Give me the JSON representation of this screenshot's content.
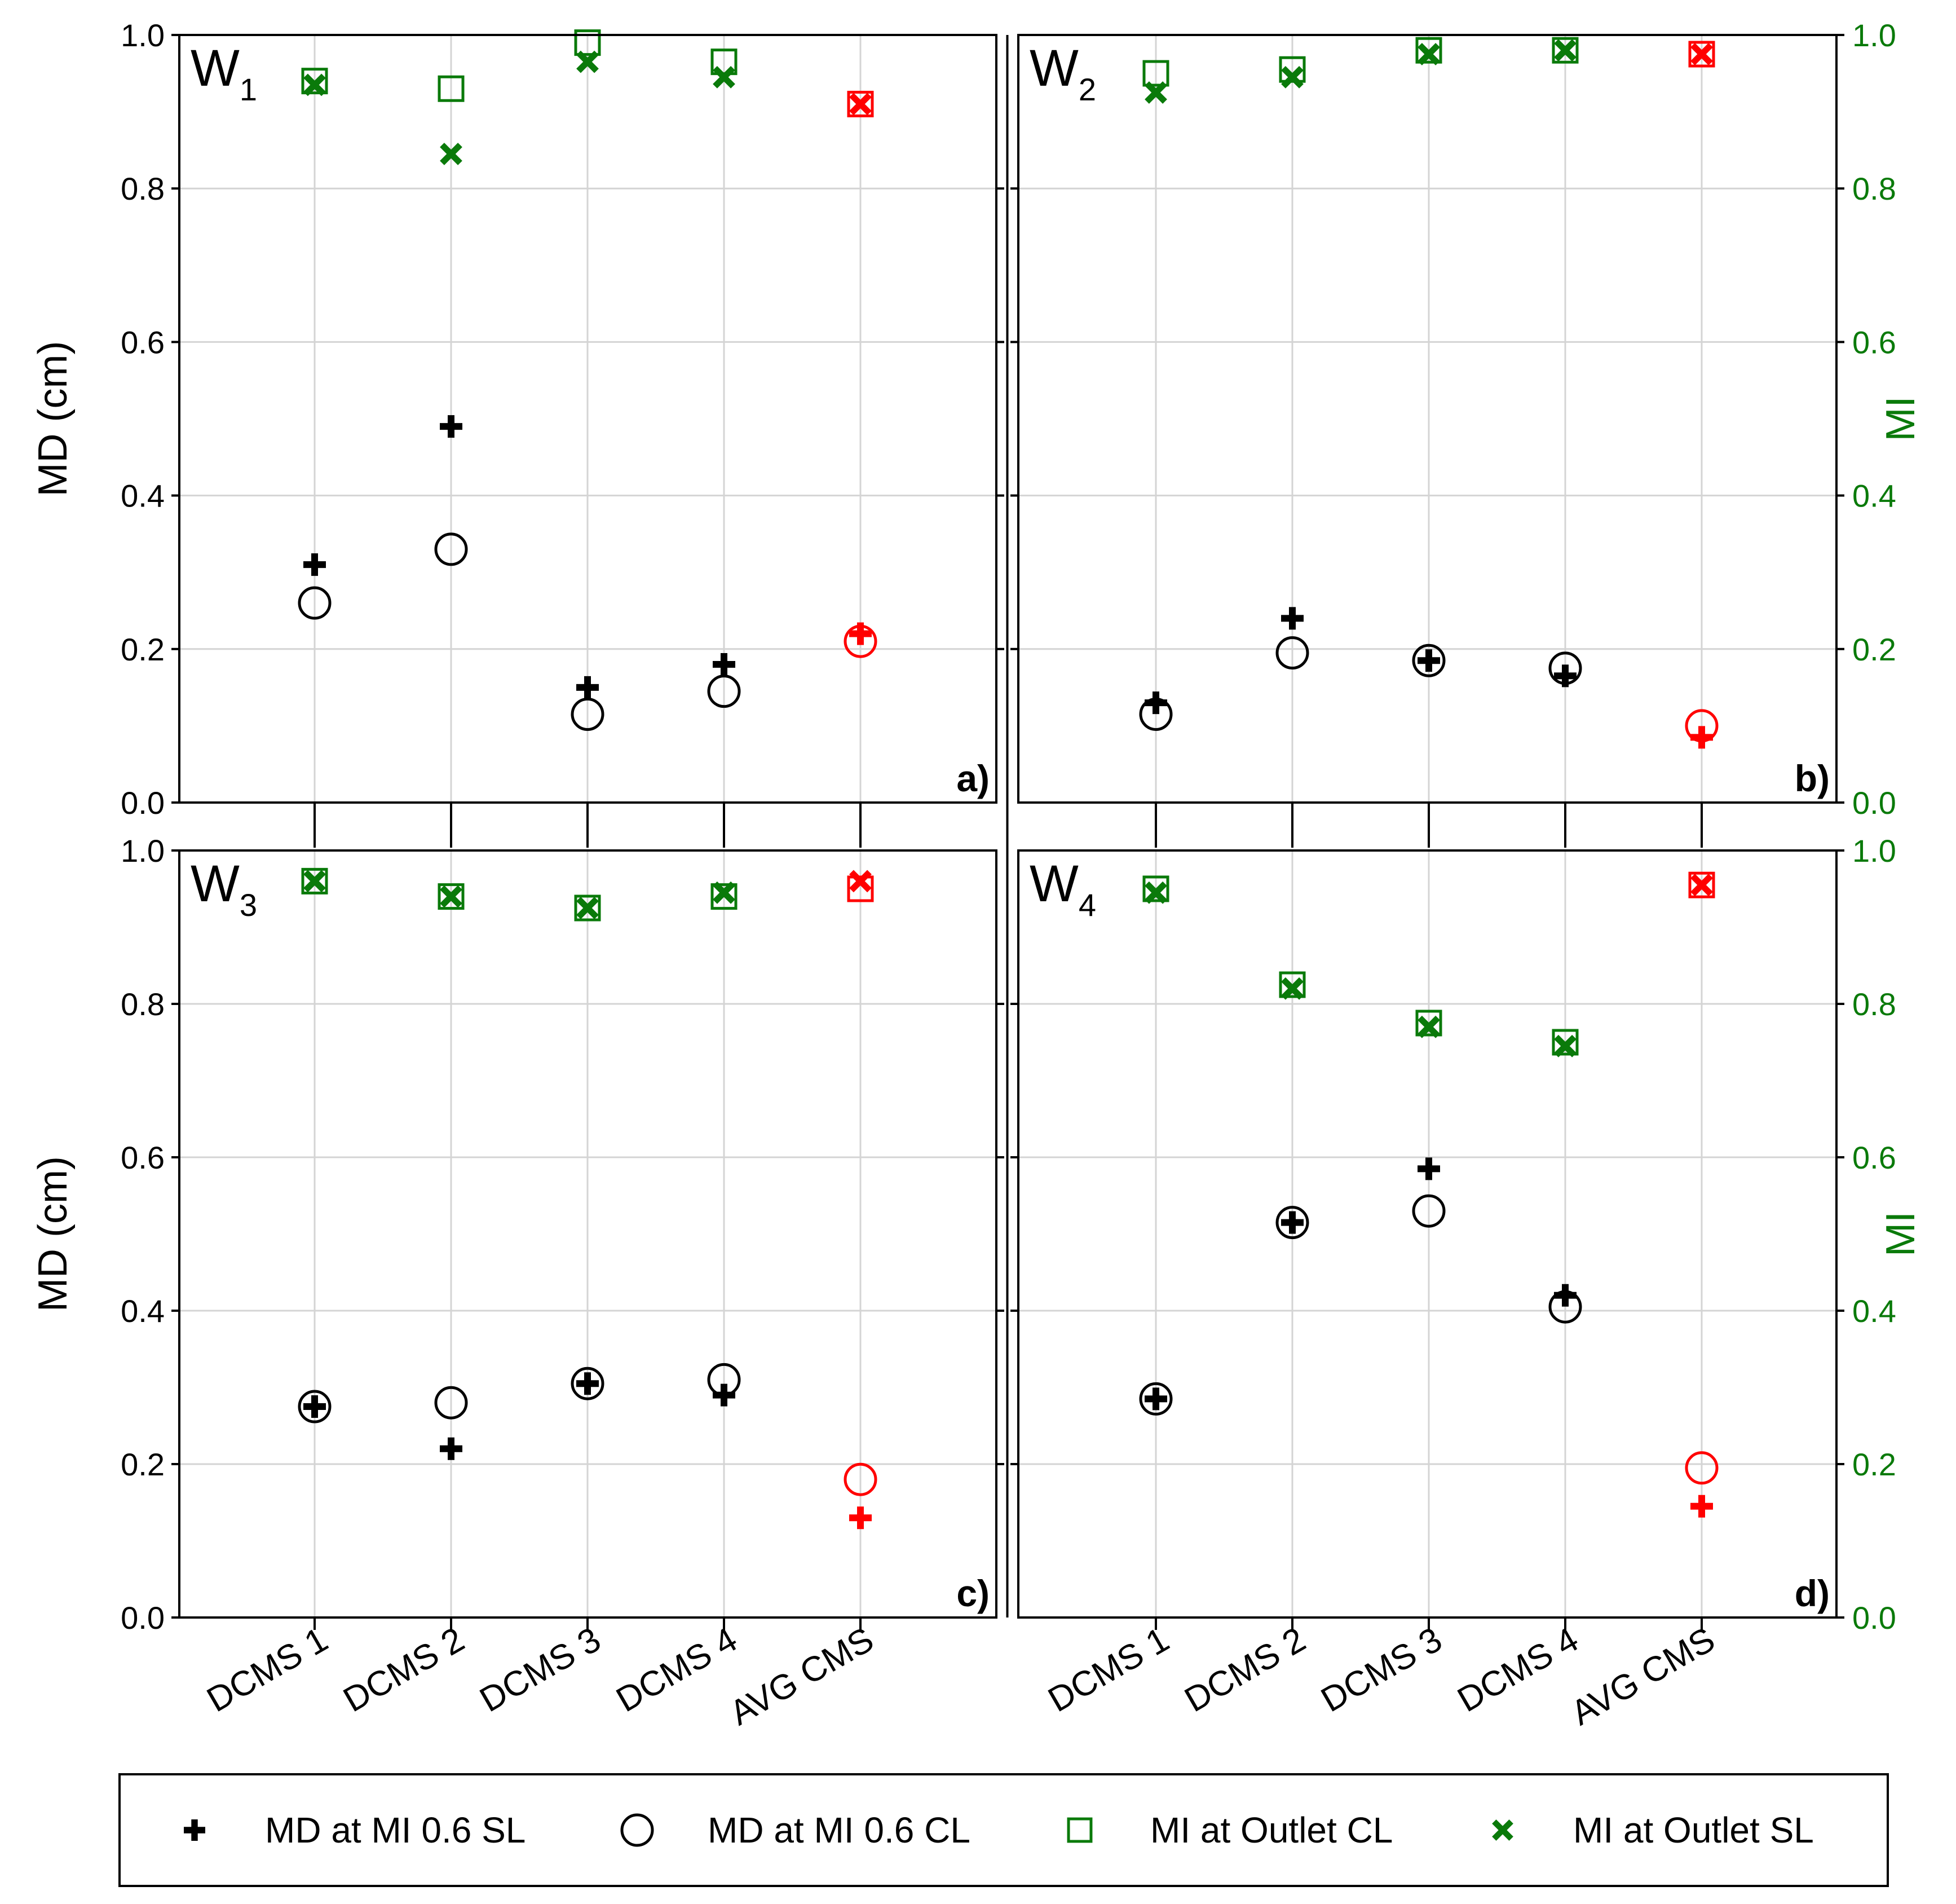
{
  "chart_data": {
    "type": "scatter",
    "categories": [
      "DCMS 1",
      "DCMS 2",
      "DCMS 3",
      "DCMS 4",
      "AVG CMS"
    ],
    "left_axis": {
      "label": "MD (cm)",
      "ylim": [
        0,
        1.0
      ],
      "ticks": [
        "0.0",
        "0.2",
        "0.4",
        "0.6",
        "0.8",
        "1.0"
      ]
    },
    "right_axis": {
      "label": "MI",
      "ylim": [
        0,
        1.0
      ],
      "ticks": [
        "0.0",
        "0.2",
        "0.4",
        "0.6",
        "0.8",
        "1.0"
      ],
      "color": "#0a7a0a"
    },
    "colors": {
      "md": "#000000",
      "mi": "#0a7a0a",
      "avg": "#ff0000"
    },
    "grid": true,
    "legend_position": "bottom",
    "legend": [
      {
        "label": "MD at MI 0.6 SL",
        "marker": "plus"
      },
      {
        "label": "MD at MI 0.6 CL",
        "marker": "circle"
      },
      {
        "label": "MI at Outlet CL",
        "marker": "square"
      },
      {
        "label": "MI at Outlet SL",
        "marker": "x"
      }
    ],
    "panels": [
      {
        "name": "W",
        "sub": "1",
        "panel_label": "a)",
        "position": "top-left",
        "series": [
          {
            "name": "MD at MI 0.6 SL",
            "marker": "plus",
            "values": [
              0.31,
              0.49,
              0.15,
              0.18,
              0.22
            ]
          },
          {
            "name": "MD at MI 0.6 CL",
            "marker": "circle",
            "values": [
              0.26,
              0.33,
              0.115,
              0.145,
              0.21
            ]
          },
          {
            "name": "MI at Outlet CL",
            "marker": "square",
            "values": [
              0.94,
              0.93,
              0.99,
              0.965,
              0.91
            ]
          },
          {
            "name": "MI at Outlet SL",
            "marker": "x",
            "values": [
              0.935,
              0.845,
              0.965,
              0.945,
              0.91
            ]
          }
        ]
      },
      {
        "name": "W",
        "sub": "2",
        "panel_label": "b)",
        "position": "top-right",
        "series": [
          {
            "name": "MD at MI 0.6 SL",
            "marker": "plus",
            "values": [
              0.13,
              0.24,
              0.185,
              0.165,
              0.085
            ]
          },
          {
            "name": "MD at MI 0.6 CL",
            "marker": "circle",
            "values": [
              0.115,
              0.195,
              0.185,
              0.175,
              0.1
            ]
          },
          {
            "name": "MI at Outlet CL",
            "marker": "square",
            "values": [
              0.95,
              0.955,
              0.98,
              0.98,
              0.975
            ]
          },
          {
            "name": "MI at Outlet SL",
            "marker": "x",
            "values": [
              0.925,
              0.945,
              0.975,
              0.98,
              0.975
            ]
          }
        ]
      },
      {
        "name": "W",
        "sub": "3",
        "panel_label": "c)",
        "position": "bottom-left",
        "series": [
          {
            "name": "MD at MI 0.6 SL",
            "marker": "plus",
            "values": [
              0.275,
              0.22,
              0.305,
              0.29,
              0.13
            ]
          },
          {
            "name": "MD at MI 0.6 CL",
            "marker": "circle",
            "values": [
              0.275,
              0.28,
              0.305,
              0.31,
              0.18
            ]
          },
          {
            "name": "MI at Outlet CL",
            "marker": "square",
            "values": [
              0.96,
              0.94,
              0.925,
              0.94,
              0.95
            ]
          },
          {
            "name": "MI at Outlet SL",
            "marker": "x",
            "values": [
              0.96,
              0.94,
              0.925,
              0.945,
              0.96
            ]
          }
        ]
      },
      {
        "name": "W",
        "sub": "4",
        "panel_label": "d)",
        "position": "bottom-right",
        "series": [
          {
            "name": "MD at MI 0.6 SL",
            "marker": "plus",
            "values": [
              0.285,
              0.515,
              0.585,
              0.42,
              0.145
            ]
          },
          {
            "name": "MD at MI 0.6 CL",
            "marker": "circle",
            "values": [
              0.285,
              0.515,
              0.53,
              0.405,
              0.195
            ]
          },
          {
            "name": "MI at Outlet CL",
            "marker": "square",
            "values": [
              0.95,
              0.825,
              0.775,
              0.75,
              0.955
            ]
          },
          {
            "name": "MI at Outlet SL",
            "marker": "x",
            "values": [
              0.945,
              0.82,
              0.77,
              0.745,
              0.955
            ]
          }
        ]
      }
    ]
  }
}
